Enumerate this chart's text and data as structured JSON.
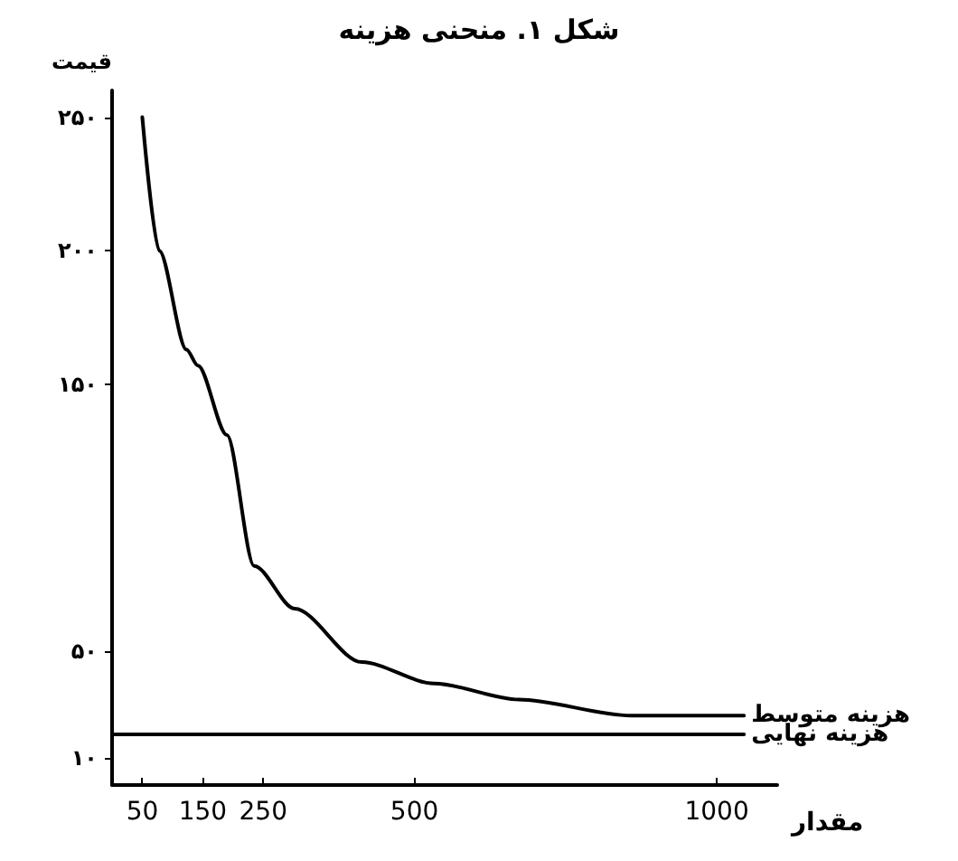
{
  "chart_data": {
    "type": "line",
    "title": "شکل ۱. منحنی هزینه",
    "xlabel": "مقدار",
    "ylabel": "قیمت",
    "xlim": [
      0,
      1100
    ],
    "xticks": [
      50,
      150,
      250,
      500,
      1000
    ],
    "ylim": [
      0,
      260
    ],
    "yticks": [
      {
        "value": 10,
        "label": "۱۰"
      },
      {
        "value": 50,
        "label": "۵۰"
      },
      {
        "value": 150,
        "label": "۱۵۰"
      },
      {
        "value": 200,
        "label": "۲۰۰"
      },
      {
        "value": 250,
        "label": "۲۵۰"
      }
    ],
    "grid": false,
    "legend": false,
    "marker": "none",
    "line_style": "solid",
    "series": [
      {
        "name": "هزینه متوسط",
        "color": "#000000",
        "x": [
          50,
          78,
          123,
          142,
          190,
          235,
          302,
          413,
          533,
          673,
          858,
          1045
        ],
        "values": [
          250,
          200,
          163,
          157,
          131,
          82,
          66,
          46,
          38,
          32,
          26,
          26
        ]
      },
      {
        "name": "هزینه نهایی",
        "color": "#000000",
        "x": [
          0,
          1045
        ],
        "values": [
          19,
          19
        ]
      }
    ]
  }
}
